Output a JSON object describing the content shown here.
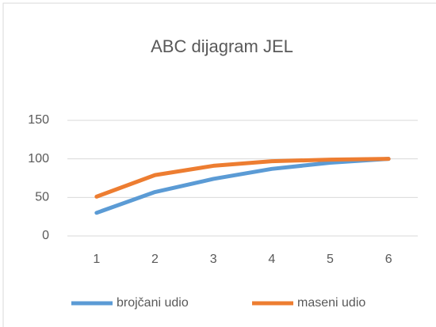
{
  "chart_data": {
    "type": "line",
    "title": "ABC dijagram JEL",
    "categories": [
      "1",
      "2",
      "3",
      "4",
      "5",
      "6"
    ],
    "series": [
      {
        "name": "brojčani udio",
        "color": "#5b9bd5",
        "values": [
          30,
          57,
          74,
          87,
          95,
          100
        ]
      },
      {
        "name": "maseni udio",
        "color": "#ed7d31",
        "values": [
          51,
          79,
          91,
          97,
          99,
          100
        ]
      }
    ],
    "ylim": [
      0,
      150
    ],
    "yticks": [
      0,
      50,
      100,
      150
    ],
    "grid": true,
    "legend": "bottom"
  }
}
